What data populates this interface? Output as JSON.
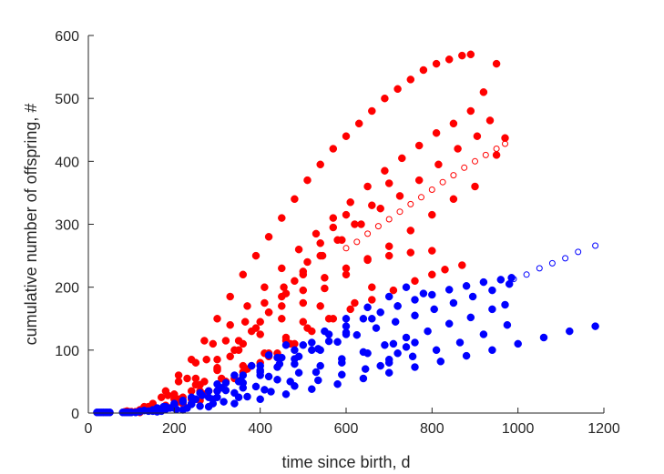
{
  "chart_data": {
    "type": "scatter",
    "title": "",
    "xlabel": "time since birth, d",
    "ylabel": "cumulative number of offspring, #",
    "xlim": [
      0,
      1200
    ],
    "ylim": [
      0,
      600
    ],
    "xticks": [
      0,
      200,
      400,
      600,
      800,
      1000,
      1200
    ],
    "yticks": [
      0,
      100,
      200,
      300,
      400,
      500,
      600
    ],
    "grid": false,
    "legend": "none",
    "colors": {
      "red": "#ff0000",
      "blue": "#0000ff",
      "axis": "#262626"
    },
    "series": [
      {
        "color": "#ff0000",
        "marker": "filled-circle",
        "groups": [
          {
            "x": [
              85,
              120,
              150,
              180,
              210,
              240,
              270,
              300,
              330,
              360,
              390,
              420,
              450,
              480,
              510,
              540,
              570,
              600,
              630,
              660,
              690,
              720,
              750,
              780,
              810,
              840,
              870,
              890
            ],
            "y": [
              2,
              5,
              15,
              35,
              60,
              85,
              115,
              150,
              185,
              220,
              250,
              280,
              310,
              340,
              370,
              395,
              420,
              440,
              460,
              480,
              500,
              515,
              530,
              545,
              555,
              562,
              568,
              570
            ]
          },
          {
            "x": [
              90,
              130,
              170,
              210,
              250,
              290,
              330,
              370,
              410,
              450,
              490,
              530,
              570,
              610,
              650,
              690,
              730,
              770,
              810,
              850,
              890,
              920,
              950
            ],
            "y": [
              3,
              10,
              25,
              50,
              80,
              110,
              140,
              170,
              200,
              230,
              260,
              285,
              310,
              335,
              360,
              385,
              405,
              425,
              445,
              460,
              480,
              510,
              555
            ]
          },
          {
            "x": [
              95,
              140,
              185,
              230,
              275,
              320,
              365,
              410,
              455,
              500,
              545,
              590,
              635,
              680,
              725,
              770,
              815,
              860,
              905,
              935
            ],
            "y": [
              2,
              10,
              28,
              55,
              85,
              115,
              145,
              175,
              200,
              225,
              250,
              275,
              300,
              325,
              345,
              370,
              395,
              420,
              440,
              465
            ]
          },
          {
            "x": [
              100,
              150,
              200,
              250,
              300,
              350,
              400,
              450,
              500,
              550,
              600,
              650,
              700,
              750,
              800,
              850,
              900,
              950,
              970
            ],
            "y": [
              2,
              8,
              22,
              45,
              72,
              100,
              125,
              150,
              175,
              198,
              220,
              243,
              265,
              290,
              315,
              340,
              360,
              410,
              437
            ]
          },
          {
            "x": [
              100,
              150,
              200,
              250,
              300,
              350,
              400,
              450,
              500,
              550,
              600,
              650,
              700,
              750,
              800
            ],
            "y": [
              2,
              10,
              30,
              55,
              85,
              115,
              145,
              170,
              195,
              215,
              230,
              245,
              250,
              255,
              258
            ]
          },
          {
            "x": [
              110,
              160,
              210,
              260,
              310,
              360,
              410,
              460,
              510,
              560,
              610,
              660,
              710,
              760,
              800,
              830,
              870
            ],
            "y": [
              2,
              7,
              18,
              35,
              55,
              75,
              95,
              115,
              135,
              150,
              165,
              180,
              195,
              210,
              220,
              228,
              235
            ]
          },
          {
            "x": [
              120,
              170,
              220,
              270,
              320,
              370,
              420,
              470,
              520,
              570,
              620,
              660
            ],
            "y": [
              1,
              5,
              15,
              30,
              50,
              70,
              90,
              110,
              130,
              150,
              175,
              200
            ]
          },
          {
            "x": [
              180,
              210,
              240,
              270,
              300,
              330,
              360,
              390,
              420,
              450,
              480,
              510,
              540,
              570,
              600
            ],
            "y": [
              12,
              22,
              35,
              50,
              68,
              90,
              110,
              135,
              160,
              185,
              210,
              240,
              270,
              295,
              315
            ]
          },
          {
            "x": [
              220,
              260,
              300,
              340,
              380,
              420,
              460,
              500,
              540,
              580,
              620,
              660,
              700
            ],
            "y": [
              25,
              45,
              70,
              100,
              130,
              160,
              190,
              220,
              250,
              275,
              300,
              330,
              365
            ]
          },
          {
            "x": [
              260,
              300,
              340,
              380,
              420,
              460,
              500,
              540
            ],
            "y": [
              20,
              35,
              55,
              75,
              95,
              120,
              145,
              170
            ]
          },
          {
            "x": [
              160,
              200,
              240,
              280,
              320,
              360,
              400,
              440,
              480
            ],
            "y": [
              5,
              12,
              22,
              35,
              50,
              65,
              80,
              95,
              110
            ]
          }
        ]
      },
      {
        "color": "#ff0000",
        "marker": "open-circle",
        "groups": [
          {
            "x": [
              600,
              625,
              650,
              675,
              700,
              725,
              750,
              775,
              800,
              825,
              850,
              875,
              900,
              925,
              950,
              970
            ],
            "y": [
              262,
              272,
              285,
              297,
              308,
              320,
              332,
              343,
              355,
              367,
              378,
              390,
              400,
              410,
              420,
              428
            ]
          }
        ]
      },
      {
        "color": "#0000ff",
        "marker": "filled-circle",
        "groups": [
          {
            "x": [
              20,
              25,
              30,
              35,
              40,
              45,
              50
            ],
            "y": [
              1,
              1,
              1,
              1,
              1,
              1,
              1
            ]
          },
          {
            "x": [
              80,
              120,
              160,
              200,
              240,
              280,
              320,
              360,
              400,
              440,
              480,
              520,
              560,
              600,
              640,
              680,
              720,
              760,
              800,
              840,
              880,
              920,
              960,
              985
            ],
            "y": [
              1,
              3,
              8,
              15,
              25,
              35,
              48,
              60,
              75,
              88,
              100,
              112,
              125,
              138,
              150,
              160,
              170,
              180,
              188,
              196,
              202,
              208,
              212,
              215
            ]
          },
          {
            "x": [
              85,
              130,
              175,
              220,
              265,
              310,
              355,
              400,
              445,
              490,
              535,
              580,
              625,
              670,
              715,
              760,
              805,
              850,
              895,
              940,
              980
            ],
            "y": [
              1,
              4,
              10,
              18,
              28,
              40,
              52,
              65,
              78,
              90,
              102,
              113,
              124,
              135,
              145,
              155,
              165,
              175,
              185,
              195,
              205
            ]
          },
          {
            "x": [
              90,
              140,
              190,
              240,
              290,
              340,
              390,
              440,
              490,
              540,
              590,
              640,
              690,
              740,
              790,
              840,
              890,
              940,
              970
            ],
            "y": [
              1,
              3,
              8,
              14,
              22,
              32,
              42,
              53,
              64,
              75,
              86,
              97,
              108,
              120,
              130,
              142,
              152,
              165,
              172
            ]
          },
          {
            "x": [
              95,
              150,
              205,
              260,
              315,
              370,
              425,
              480,
              535,
              590,
              645,
              700,
              755,
              810,
              865,
              920,
              975
            ],
            "y": [
              1,
              3,
              6,
              11,
              18,
              26,
              34,
              43,
              52,
              61,
              70,
              80,
              90,
              100,
              112,
              125,
              140
            ]
          },
          {
            "x": [
              100,
              160,
              220,
              280,
              340,
              400,
              460,
              520,
              580,
              640,
              700,
              760,
              820,
              880,
              940,
              1000,
              1060,
              1120,
              1180
            ],
            "y": [
              1,
              2,
              5,
              10,
              15,
              22,
              30,
              38,
              46,
              55,
              64,
              73,
              82,
              91,
              100,
              110,
              120,
              130,
              138
            ]
          },
          {
            "x": [
              110,
              170,
              230,
              290,
              350,
              410,
              470,
              530,
              590,
              650,
              710
            ],
            "y": [
              1,
              3,
              8,
              15,
              25,
              37,
              50,
              65,
              80,
              95,
              110
            ]
          },
          {
            "x": [
              120,
              180,
              240,
              300,
              360,
              420,
              480,
              540,
              600,
              660,
              720,
              780
            ],
            "y": [
              2,
              6,
              14,
              25,
              40,
              58,
              78,
              100,
              125,
              150,
              170,
              190
            ]
          },
          {
            "x": [
              150,
              200,
              250,
              300,
              350,
              400,
              450,
              500,
              550,
              600,
              650,
              700,
              740
            ],
            "y": [
              5,
              12,
              22,
              35,
              50,
              68,
              88,
              108,
              130,
              150,
              168,
              185,
              200
            ]
          },
          {
            "x": [
              180,
              220,
              260,
              300,
              340,
              380,
              420,
              460
            ],
            "y": [
              10,
              20,
              32,
              46,
              60,
              75,
              92,
              108
            ]
          },
          {
            "x": [
              200,
              240,
              280,
              320,
              360,
              400,
              440,
              480,
              520,
              560,
              600
            ],
            "y": [
              8,
              15,
              25,
              36,
              48,
              60,
              73,
              86,
              100,
              114,
              128
            ]
          },
          {
            "x": [
              680,
              700,
              720,
              740,
              760
            ],
            "y": [
              75,
              85,
              95,
              105,
              112
            ]
          }
        ]
      },
      {
        "color": "#0000ff",
        "marker": "open-circle",
        "groups": [
          {
            "x": [
              990,
              1020,
              1050,
              1080,
              1110,
              1140,
              1180
            ],
            "y": [
              213,
              220,
              230,
              238,
              246,
              256,
              266
            ]
          }
        ]
      }
    ]
  }
}
